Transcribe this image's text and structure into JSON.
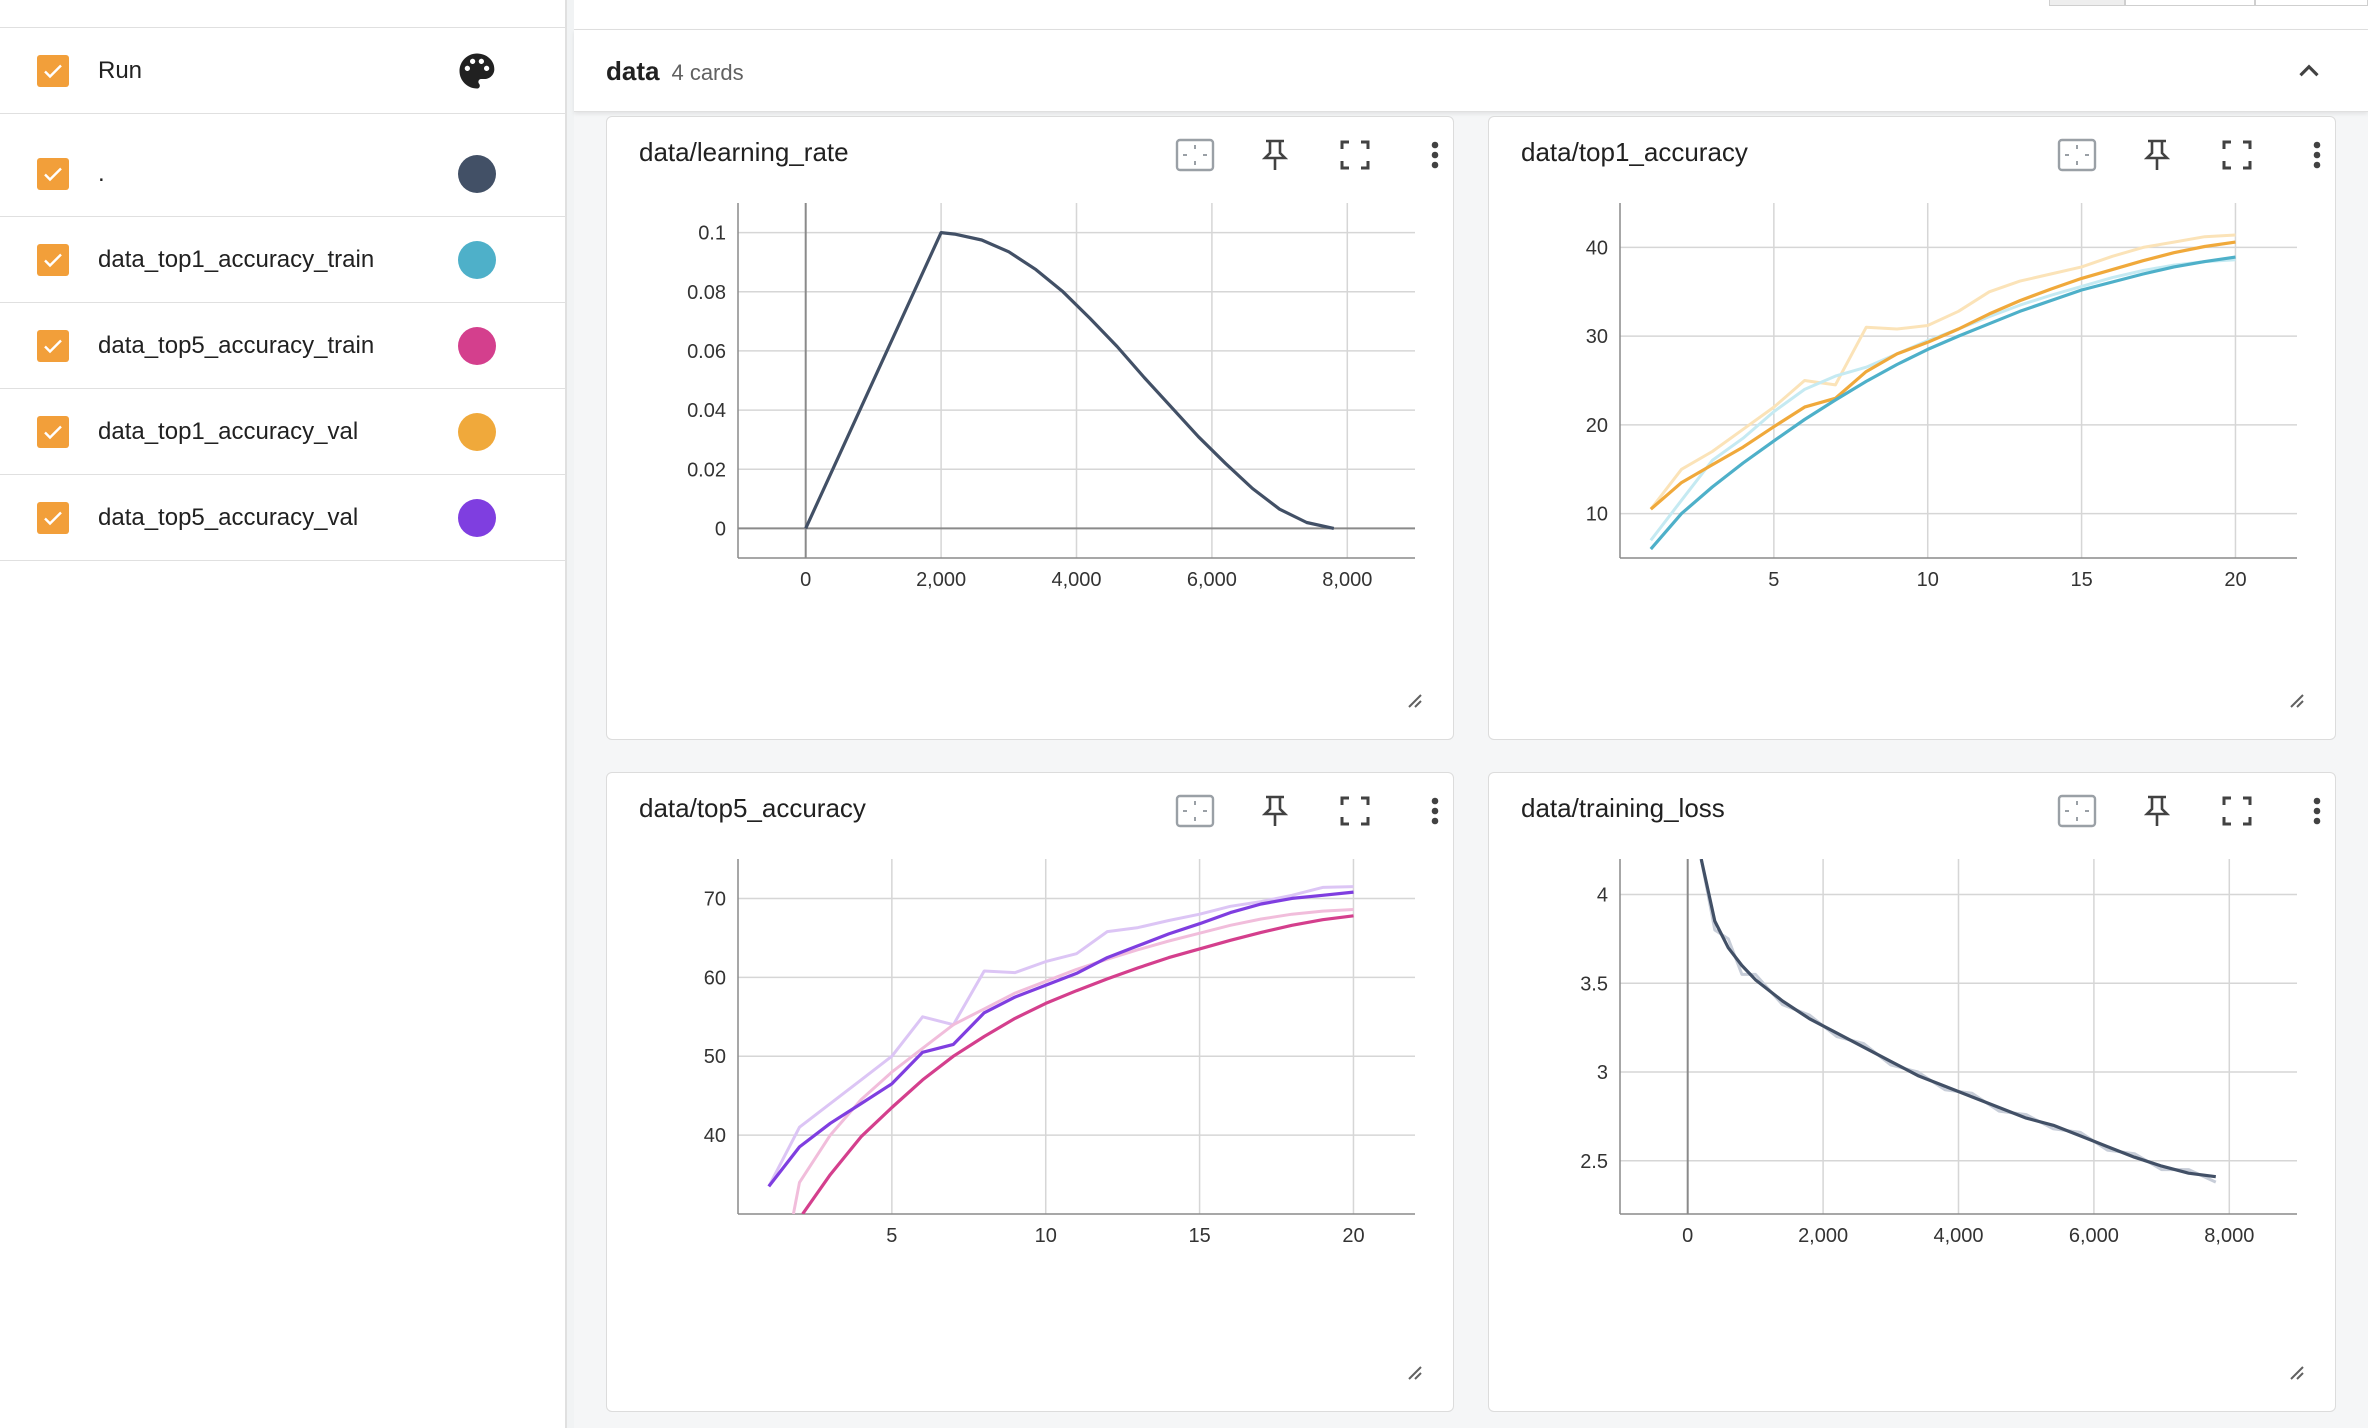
{
  "runs": {
    "header_label": "Run",
    "items": [
      {
        "label": ".",
        "color": "#425066"
      },
      {
        "label": "data_top1_accuracy_train",
        "color": "#4eb0c9"
      },
      {
        "label": "data_top5_accuracy_train",
        "color": "#d43f8d"
      },
      {
        "label": "data_top1_accuracy_val",
        "color": "#f0a93b"
      },
      {
        "label": "data_top5_accuracy_val",
        "color": "#7f3ee0"
      }
    ]
  },
  "group": {
    "name": "data",
    "count": "4 cards"
  },
  "cards": [
    {
      "title": "data/learning_rate"
    },
    {
      "title": "data/top1_accuracy"
    },
    {
      "title": "data/top5_accuracy"
    },
    {
      "title": "data/training_loss"
    }
  ],
  "icons": {
    "checkbox": "check-icon",
    "palette": "palette-icon",
    "collapse": "chevron-up-icon",
    "fit": "fit-domain-icon",
    "pin": "pin-icon",
    "fullscreen": "fullscreen-icon",
    "more": "more-vert-icon",
    "resize": "resize-handle-icon"
  },
  "chart_data": [
    {
      "type": "line",
      "title": "data/learning_rate",
      "xlim": [
        -1000,
        9000
      ],
      "ylim": [
        -0.01,
        0.11
      ],
      "xticks": [
        "0",
        "2,000",
        "4,000",
        "6,000",
        "8,000"
      ],
      "xtick_values": [
        0,
        2000,
        4000,
        6000,
        8000
      ],
      "yticks": [
        "0",
        "0.02",
        "0.04",
        "0.06",
        "0.08",
        "0.1"
      ],
      "ytick_values": [
        0,
        0.02,
        0.04,
        0.06,
        0.08,
        0.1
      ],
      "grid": true,
      "series": [
        {
          "color": "#425066",
          "smoothed": true,
          "x": [
            0,
            2000,
            2200,
            2600,
            3000,
            3400,
            3800,
            4200,
            4600,
            5000,
            5400,
            5800,
            6200,
            6600,
            7000,
            7400,
            7800
          ],
          "y": [
            0,
            0.1,
            0.0995,
            0.0975,
            0.0935,
            0.0875,
            0.08,
            0.071,
            0.0615,
            0.051,
            0.041,
            0.031,
            0.022,
            0.0135,
            0.0065,
            0.002,
            0
          ]
        }
      ]
    },
    {
      "type": "line",
      "title": "data/top1_accuracy",
      "xlim": [
        0,
        22
      ],
      "ylim": [
        5,
        45
      ],
      "xticks": [
        "5",
        "10",
        "15",
        "20"
      ],
      "xtick_values": [
        5,
        10,
        15,
        20
      ],
      "yticks": [
        "10",
        "20",
        "30",
        "40"
      ],
      "ytick_values": [
        10,
        20,
        30,
        40
      ],
      "grid": true,
      "series": [
        {
          "color": "#f0a93b",
          "smoothed": true,
          "x": [
            1,
            2,
            3,
            4,
            5,
            6,
            7,
            8,
            9,
            10,
            11,
            12,
            13,
            14,
            15,
            16,
            17,
            18,
            19,
            20
          ],
          "y": [
            10.5,
            13.5,
            15.5,
            17.5,
            19.8,
            22,
            23,
            26,
            28,
            29.3,
            30.8,
            32.5,
            34,
            35.3,
            36.5,
            37.5,
            38.5,
            39.4,
            40.1,
            40.6
          ]
        },
        {
          "color": "#fbe3b8",
          "smoothed": false,
          "x": [
            1,
            2,
            3,
            4,
            5,
            6,
            7,
            8,
            9,
            10,
            11,
            12,
            13,
            14,
            15,
            16,
            17,
            18,
            19,
            20
          ],
          "y": [
            10.5,
            15,
            17,
            19.5,
            22,
            25,
            24.5,
            31,
            30.8,
            31.2,
            32.8,
            35,
            36.2,
            37,
            37.8,
            39,
            40,
            40.6,
            41.2,
            41.4
          ]
        },
        {
          "color": "#4eb0c9",
          "smoothed": true,
          "x": [
            1,
            2,
            3,
            4,
            5,
            6,
            7,
            8,
            9,
            10,
            11,
            12,
            13,
            14,
            15,
            16,
            17,
            18,
            19,
            20
          ],
          "y": [
            6,
            10,
            13,
            15.7,
            18.2,
            20.6,
            22.8,
            24.9,
            26.8,
            28.5,
            30,
            31.4,
            32.8,
            34,
            35.2,
            36.1,
            37,
            37.8,
            38.4,
            38.9
          ]
        },
        {
          "color": "#c5eaf2",
          "smoothed": false,
          "x": [
            1,
            2,
            3,
            4,
            5,
            6,
            7,
            8,
            9,
            10,
            11,
            12,
            13,
            14,
            15,
            16,
            17,
            18,
            19,
            20
          ],
          "y": [
            7,
            11.5,
            16,
            18.5,
            21.5,
            24,
            25.5,
            26.5,
            28,
            29.5,
            30.8,
            32.2,
            33.5,
            34.6,
            35.6,
            36.6,
            37.4,
            38,
            38.4,
            38.6
          ]
        }
      ]
    },
    {
      "type": "line",
      "title": "data/top5_accuracy",
      "xlim": [
        0,
        22
      ],
      "ylim": [
        30,
        75
      ],
      "xticks": [
        "5",
        "10",
        "15",
        "20"
      ],
      "xtick_values": [
        5,
        10,
        15,
        20
      ],
      "yticks": [
        "40",
        "50",
        "60",
        "70"
      ],
      "ytick_values": [
        40,
        50,
        60,
        70
      ],
      "grid": true,
      "series": [
        {
          "color": "#7f3ee0",
          "smoothed": true,
          "x": [
            1,
            2,
            3,
            4,
            5,
            6,
            7,
            8,
            9,
            10,
            11,
            12,
            13,
            14,
            15,
            16,
            17,
            18,
            19,
            20
          ],
          "y": [
            33.5,
            38.5,
            41.5,
            44,
            46.5,
            50.5,
            51.5,
            55.5,
            57.5,
            59,
            60.5,
            62.5,
            64,
            65.5,
            66.8,
            68.2,
            69.3,
            70,
            70.4,
            70.8
          ]
        },
        {
          "color": "#dcc5f5",
          "smoothed": false,
          "x": [
            1,
            2,
            3,
            4,
            5,
            6,
            7,
            8,
            9,
            10,
            11,
            12,
            13,
            14,
            15,
            16,
            17,
            18,
            19,
            20
          ],
          "y": [
            33.5,
            41,
            44,
            47,
            50,
            55,
            54,
            60.8,
            60.6,
            62,
            63,
            65.8,
            66.3,
            67.2,
            68,
            69,
            69.6,
            70.4,
            71.4,
            71.5
          ]
        },
        {
          "color": "#d43f8d",
          "smoothed": true,
          "x": [
            2.1,
            3,
            4,
            5,
            6,
            7,
            8,
            9,
            10,
            11,
            12,
            13,
            14,
            15,
            16,
            17,
            18,
            19,
            20
          ],
          "y": [
            30,
            35,
            39.8,
            43.5,
            47,
            50,
            52.5,
            54.8,
            56.7,
            58.3,
            59.8,
            61.2,
            62.5,
            63.6,
            64.7,
            65.7,
            66.6,
            67.3,
            67.8
          ]
        },
        {
          "color": "#f1bddb",
          "smoothed": false,
          "x": [
            1.8,
            2,
            3,
            4,
            5,
            6,
            7,
            8,
            9,
            10,
            11,
            12,
            13,
            14,
            15,
            16,
            17,
            18,
            19,
            20
          ],
          "y": [
            30,
            34,
            40,
            44.5,
            48,
            51,
            54,
            56,
            58,
            59.5,
            61,
            62.3,
            63.5,
            64.6,
            65.6,
            66.6,
            67.4,
            68,
            68.4,
            68.6
          ]
        }
      ]
    },
    {
      "type": "line",
      "title": "data/training_loss",
      "xlim": [
        -1000,
        9000
      ],
      "ylim": [
        2.2,
        4.2
      ],
      "xticks": [
        "0",
        "2,000",
        "4,000",
        "6,000",
        "8,000"
      ],
      "xtick_values": [
        0,
        2000,
        4000,
        6000,
        8000
      ],
      "yticks": [
        "2.5",
        "3",
        "3.5",
        "4"
      ],
      "ytick_values": [
        2.5,
        3,
        3.5,
        4
      ],
      "grid": true,
      "series": [
        {
          "color": "#425066",
          "smoothed": true,
          "x": [
            200,
            400,
            600,
            800,
            1000,
            1400,
            1800,
            2200,
            2600,
            3000,
            3400,
            3800,
            4200,
            4600,
            5000,
            5400,
            5800,
            6200,
            6600,
            7000,
            7400,
            7800
          ],
          "y": [
            4.2,
            3.85,
            3.7,
            3.6,
            3.52,
            3.4,
            3.3,
            3.22,
            3.14,
            3.06,
            2.98,
            2.92,
            2.86,
            2.8,
            2.74,
            2.7,
            2.64,
            2.58,
            2.52,
            2.47,
            2.43,
            2.41
          ]
        },
        {
          "color": "#c7cdd8",
          "smoothed": false,
          "x": [
            200,
            400,
            600,
            800,
            1000,
            1400,
            1800,
            2200,
            2600,
            3000,
            3400,
            3800,
            4200,
            4600,
            5000,
            5400,
            5800,
            6200,
            6600,
            7000,
            7400,
            7800
          ],
          "y": [
            4.2,
            3.8,
            3.75,
            3.55,
            3.55,
            3.38,
            3.32,
            3.2,
            3.16,
            3.04,
            3.0,
            2.9,
            2.88,
            2.78,
            2.76,
            2.68,
            2.66,
            2.56,
            2.54,
            2.45,
            2.45,
            2.38
          ]
        }
      ]
    }
  ]
}
